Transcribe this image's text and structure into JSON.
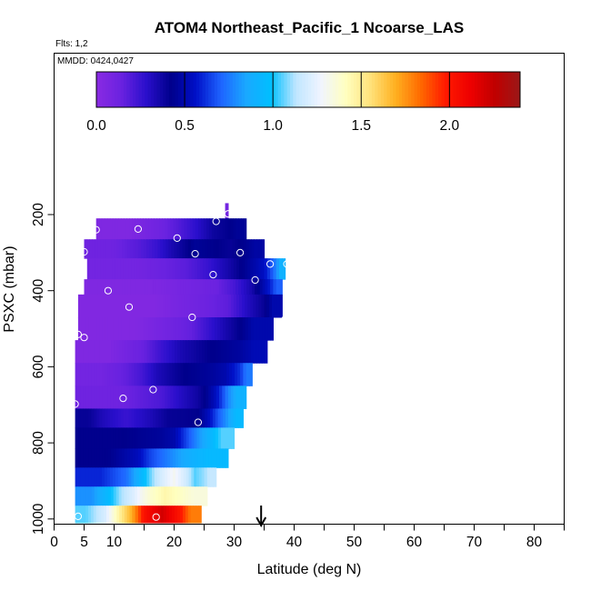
{
  "chart_data": {
    "type": "heatmap",
    "title": "ATOM4 Northeast_Pacific_1 Ncoarse_LAS",
    "flights_label": "Flts: 1,2",
    "mmdd_label": "MMDD: 0424,0427",
    "xlabel": "Latitude (deg N)",
    "ylabel": "PSXC (mbar)",
    "xlim": [
      0,
      85
    ],
    "ylim": [
      1000,
      100
    ],
    "x_tick_labels": [
      "0",
      "5",
      "10",
      "20",
      "30",
      "40",
      "50",
      "60",
      "70",
      "80"
    ],
    "x_tick_values": [
      0,
      5,
      10,
      20,
      30,
      40,
      50,
      60,
      70,
      80
    ],
    "x_minor_ticks": [
      15,
      25,
      35,
      45,
      55,
      65,
      75,
      85
    ],
    "y_tick_labels": [
      "200",
      "400",
      "600",
      "800",
      "1000"
    ],
    "y_tick_values": [
      200,
      400,
      600,
      800,
      1000
    ],
    "colorbar": {
      "min": 0,
      "max": 2.4,
      "tick_labels": [
        "0.0",
        "0.5",
        "1.0",
        "1.5",
        "2.0"
      ],
      "tick_values": [
        0,
        0.5,
        1.0,
        1.5,
        2.0
      ],
      "colors": [
        "#8a2be2",
        "#6a22e0",
        "#2a0fcc",
        "#00008b",
        "#0010c8",
        "#1e64ff",
        "#1aa8ff",
        "#00bfff",
        "#bfe6ff",
        "#f0f4ff",
        "#ffffc0",
        "#ffe27a",
        "#ffb020",
        "#ff6a00",
        "#ff1a00",
        "#ee0000",
        "#c00000",
        "#9a1818"
      ]
    },
    "arrow_latitude": 34.5,
    "bands": [
      {
        "p0": 170,
        "p1": 210,
        "lat0": 28.5,
        "lat1": 29.0,
        "segs": [
          [
            28.5,
            29.0,
            0.1
          ]
        ]
      },
      {
        "p0": 210,
        "p1": 265,
        "lat0": 7.0,
        "lat1": 32.0,
        "segs": [
          [
            7,
            18,
            0.05
          ],
          [
            18,
            24,
            0.2
          ],
          [
            24,
            29,
            0.38
          ],
          [
            29,
            32,
            0.45
          ]
        ]
      },
      {
        "p0": 265,
        "p1": 315,
        "lat0": 5.0,
        "lat1": 35.0,
        "segs": [
          [
            5,
            14,
            0.12
          ],
          [
            14,
            20,
            0.25
          ],
          [
            20,
            27,
            0.45
          ],
          [
            27,
            32,
            0.4
          ],
          [
            32,
            35,
            0.48
          ]
        ]
      },
      {
        "p0": 315,
        "p1": 370,
        "lat0": 5.5,
        "lat1": 38.5,
        "segs": [
          [
            5.5,
            22,
            0.1
          ],
          [
            22,
            29,
            0.25
          ],
          [
            29,
            35,
            0.45
          ],
          [
            35,
            37,
            0.65
          ],
          [
            37,
            38.5,
            0.9
          ]
        ]
      },
      {
        "p0": 370,
        "p1": 410,
        "lat0": 5.0,
        "lat1": 38.0,
        "segs": [
          [
            5,
            27,
            0.05
          ],
          [
            27,
            33,
            0.22
          ],
          [
            33,
            36,
            0.48
          ],
          [
            36,
            38,
            0.7
          ]
        ]
      },
      {
        "p0": 410,
        "p1": 470,
        "lat0": 4.0,
        "lat1": 38.0,
        "segs": [
          [
            4,
            29,
            0.04
          ],
          [
            29,
            35,
            0.3
          ],
          [
            35,
            38,
            0.5
          ]
        ]
      },
      {
        "p0": 470,
        "p1": 530,
        "lat0": 4.0,
        "lat1": 36.5,
        "segs": [
          [
            4,
            23,
            0.04
          ],
          [
            23,
            30,
            0.28
          ],
          [
            30,
            36.5,
            0.5
          ]
        ]
      },
      {
        "p0": 530,
        "p1": 590,
        "lat0": 3.5,
        "lat1": 35.5,
        "segs": [
          [
            3.5,
            15,
            0.05
          ],
          [
            15,
            21,
            0.25
          ],
          [
            21,
            31,
            0.42
          ],
          [
            31,
            35.5,
            0.52
          ]
        ]
      },
      {
        "p0": 590,
        "p1": 650,
        "lat0": 3.5,
        "lat1": 33.0,
        "segs": [
          [
            3.5,
            12,
            0.1
          ],
          [
            12,
            17,
            0.22
          ],
          [
            17,
            26,
            0.42
          ],
          [
            26,
            31,
            0.5
          ],
          [
            31,
            33,
            0.75
          ]
        ]
      },
      {
        "p0": 650,
        "p1": 710,
        "lat0": 3.5,
        "lat1": 32.0,
        "segs": [
          [
            3.5,
            18,
            0.12
          ],
          [
            18,
            24,
            0.3
          ],
          [
            24,
            27,
            0.45
          ],
          [
            27,
            29,
            0.65
          ],
          [
            29,
            32,
            0.9
          ]
        ]
      },
      {
        "p0": 710,
        "p1": 760,
        "lat0": 3.5,
        "lat1": 31.5,
        "segs": [
          [
            3.5,
            8,
            0.4
          ],
          [
            8,
            16,
            0.25
          ],
          [
            16,
            22,
            0.4
          ],
          [
            22,
            26,
            0.42
          ],
          [
            26,
            29,
            0.7
          ],
          [
            29,
            31.5,
            0.95
          ]
        ]
      },
      {
        "p0": 760,
        "p1": 815,
        "lat0": 3.5,
        "lat1": 30.0,
        "segs": [
          [
            3.5,
            18,
            0.42
          ],
          [
            18,
            22,
            0.5
          ],
          [
            22,
            26,
            0.8
          ],
          [
            26,
            30,
            1.05
          ]
        ]
      },
      {
        "p0": 815,
        "p1": 865,
        "lat0": 3.5,
        "lat1": 29.0,
        "segs": [
          [
            3.5,
            14,
            0.42
          ],
          [
            14,
            18,
            0.65
          ],
          [
            18,
            22,
            0.8
          ],
          [
            22,
            29,
            0.95
          ]
        ]
      },
      {
        "p0": 865,
        "p1": 915,
        "lat0": 3.5,
        "lat1": 27.0,
        "segs": [
          [
            3.5,
            12,
            0.6
          ],
          [
            12,
            15,
            0.85
          ],
          [
            15,
            18,
            1.1
          ],
          [
            18,
            22,
            1.3
          ],
          [
            22,
            25,
            1.05
          ],
          [
            25,
            27,
            1.15
          ]
        ]
      },
      {
        "p0": 915,
        "p1": 965,
        "lat0": 3.5,
        "lat1": 25.5,
        "segs": [
          [
            3.5,
            9,
            0.8
          ],
          [
            9,
            13,
            1.1
          ],
          [
            13,
            16,
            1.3
          ],
          [
            16,
            21,
            1.45
          ],
          [
            21,
            25.5,
            1.35
          ]
        ]
      },
      {
        "p0": 965,
        "p1": 1010,
        "lat0": 3.5,
        "lat1": 24.5,
        "segs": [
          [
            3.5,
            7,
            1.05
          ],
          [
            7,
            10,
            1.2
          ],
          [
            10,
            13,
            1.55
          ],
          [
            13,
            15,
            1.85
          ],
          [
            15,
            21,
            2.2
          ],
          [
            21,
            24.5,
            1.8
          ]
        ]
      }
    ],
    "points": [
      {
        "lat": 7.0,
        "p": 240
      },
      {
        "lat": 14.0,
        "p": 238
      },
      {
        "lat": 20.5,
        "p": 262
      },
      {
        "lat": 27.0,
        "p": 218
      },
      {
        "lat": 29.0,
        "p": 198
      },
      {
        "lat": 5.0,
        "p": 298
      },
      {
        "lat": 23.5,
        "p": 303
      },
      {
        "lat": 31.0,
        "p": 300
      },
      {
        "lat": 36.0,
        "p": 330
      },
      {
        "lat": 38.8,
        "p": 330
      },
      {
        "lat": 26.5,
        "p": 358
      },
      {
        "lat": 33.5,
        "p": 372
      },
      {
        "lat": 9.0,
        "p": 400
      },
      {
        "lat": 12.5,
        "p": 443
      },
      {
        "lat": 23.0,
        "p": 470
      },
      {
        "lat": 38.5,
        "p": 475
      },
      {
        "lat": 4.0,
        "p": 515
      },
      {
        "lat": 5.0,
        "p": 523
      },
      {
        "lat": 16.5,
        "p": 660
      },
      {
        "lat": 11.5,
        "p": 683
      },
      {
        "lat": 3.5,
        "p": 698
      },
      {
        "lat": 24.0,
        "p": 746
      },
      {
        "lat": 4.0,
        "p": 993
      },
      {
        "lat": 17.0,
        "p": 995
      }
    ]
  }
}
